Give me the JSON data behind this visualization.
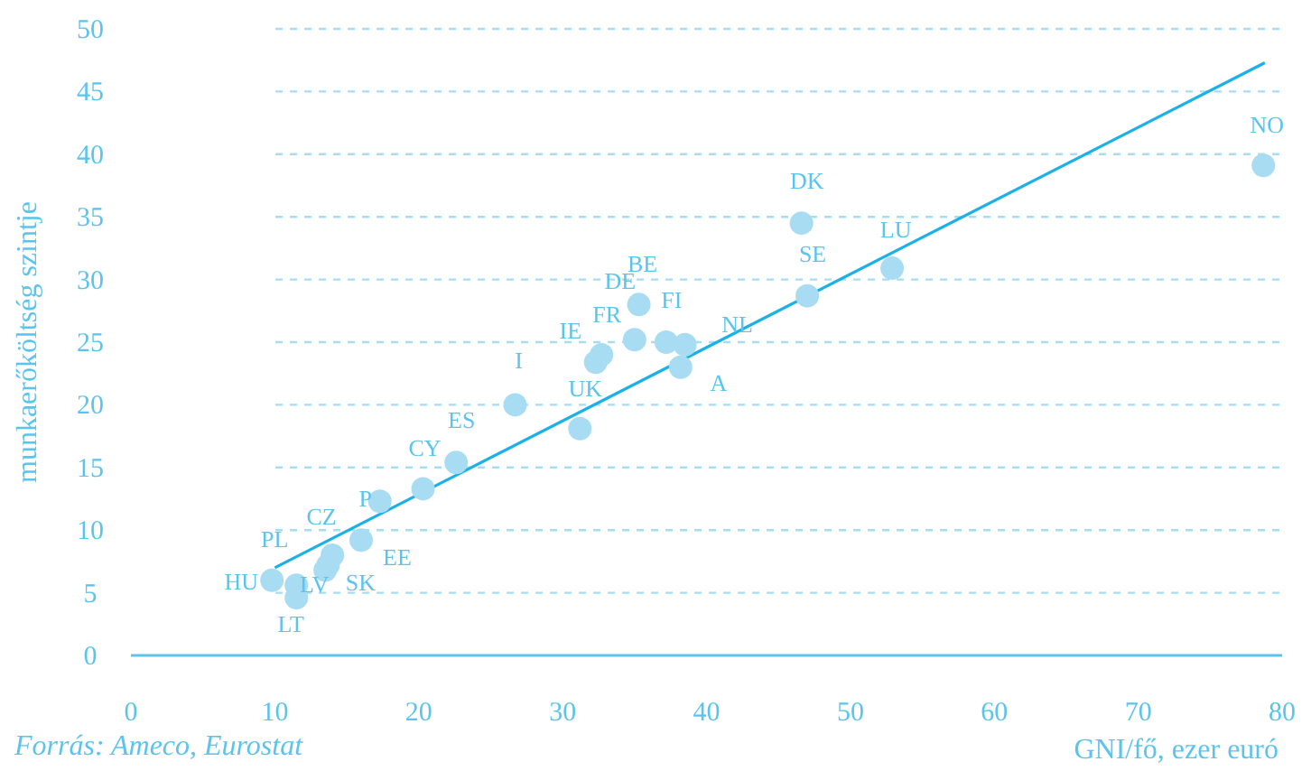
{
  "chart_data": {
    "type": "scatter",
    "xlabel": "GNI/fő, ezer euró",
    "ylabel": "munkaerőköltség szintje",
    "x": [
      9.8,
      11.5,
      11.5,
      13.5,
      13.7,
      14.0,
      16.0,
      17.3,
      20.3,
      22.6,
      26.7,
      31.2,
      32.3,
      32.7,
      35.0,
      35.3,
      37.2,
      38.5,
      38.2,
      46.6,
      47.0,
      52.9,
      78.7
    ],
    "series": [
      {
        "color": "#a8dcf3",
        "values": [
          6.0,
          5.6,
          4.6,
          6.8,
          7.2,
          8.0,
          9.2,
          12.3,
          13.3,
          15.4,
          20.0,
          18.1,
          23.4,
          24.0,
          25.2,
          28.0,
          25.0,
          24.8,
          23.0,
          34.5,
          28.7,
          30.9,
          39.1
        ]
      },
      {
        "type": "line",
        "marker": "none",
        "color": "#1ab0e8",
        "x": [
          10,
          78.8
        ],
        "values": [
          7.0,
          47.3
        ]
      }
    ],
    "marker": "circle",
    "xlim": [
      0,
      80
    ],
    "xticks": [
      0,
      10,
      20,
      30,
      40,
      50,
      60,
      70,
      80
    ],
    "ylim": [
      0,
      50
    ],
    "yticks": [
      0,
      5,
      10,
      15,
      20,
      25,
      30,
      35,
      40,
      45,
      50
    ],
    "grid": "y",
    "annotations": [
      {
        "text": "HU",
        "x": 9.8,
        "y": 6.0
      },
      {
        "text": "PL",
        "x": 11.5,
        "y": 5.6
      },
      {
        "text": "LT",
        "x": 11.5,
        "y": 4.6
      },
      {
        "text": "LV",
        "x": 13.5,
        "y": 6.8
      },
      {
        "text": "SK",
        "x": 13.7,
        "y": 7.2
      },
      {
        "text": "CZ",
        "x": 14.0,
        "y": 8.0
      },
      {
        "text": "EE",
        "x": 16.0,
        "y": 9.2
      },
      {
        "text": "P",
        "x": 17.3,
        "y": 12.3
      },
      {
        "text": "CY",
        "x": 20.3,
        "y": 13.3
      },
      {
        "text": "ES",
        "x": 22.6,
        "y": 15.4
      },
      {
        "text": "I",
        "x": 26.7,
        "y": 20.0
      },
      {
        "text": "UK",
        "x": 31.2,
        "y": 18.1
      },
      {
        "text": "IE",
        "x": 32.3,
        "y": 23.4
      },
      {
        "text": "FR",
        "x": 32.7,
        "y": 24.0
      },
      {
        "text": "DE",
        "x": 35.0,
        "y": 25.2
      },
      {
        "text": "BE",
        "x": 35.3,
        "y": 28.0
      },
      {
        "text": "FI",
        "x": 37.2,
        "y": 25.0
      },
      {
        "text": "NL",
        "x": 38.5,
        "y": 24.8
      },
      {
        "text": "A",
        "x": 38.2,
        "y": 23.0
      },
      {
        "text": "DK",
        "x": 46.6,
        "y": 34.5
      },
      {
        "text": "SE",
        "x": 47.0,
        "y": 28.7
      },
      {
        "text": "LU",
        "x": 52.9,
        "y": 30.9
      },
      {
        "text": "NO",
        "x": 78.7,
        "y": 39.1
      },
      "Forrás: Ameco, Eurostat"
    ]
  }
}
